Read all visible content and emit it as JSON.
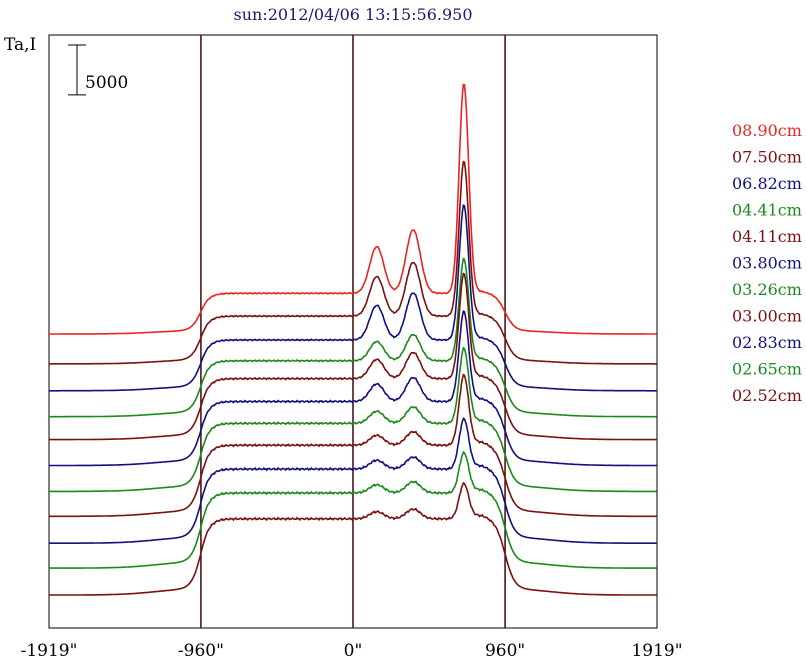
{
  "chart_data": {
    "type": "line",
    "title": "sun:2012/04/06 13:15:56.950",
    "ylabel": "Ta,I",
    "scale_bar_label": "5000",
    "scale_bar_value": 5000,
    "xlim": [
      -1919,
      1919
    ],
    "x_ticks": [
      {
        "value": -1919,
        "label": "-1919\""
      },
      {
        "value": -960,
        "label": "-960\""
      },
      {
        "value": 0,
        "label": "0\""
      },
      {
        "value": 960,
        "label": "960\""
      },
      {
        "value": 1919,
        "label": "1919\""
      }
    ],
    "vertical_lines_at": [
      -960,
      0,
      960
    ],
    "legend_position": "right",
    "series": [
      {
        "name": "08.90cm",
        "color": "#ee2222",
        "baseline": 28000,
        "ta": 4000,
        "peak": 21000,
        "peak2": 8500
      },
      {
        "name": "07.50cm",
        "color": "#7a1010",
        "baseline": 25000,
        "ta": 4700,
        "peak": 15500,
        "peak2": 7200
      },
      {
        "name": "06.82cm",
        "color": "#101080",
        "baseline": 22300,
        "ta": 5000,
        "peak": 13500,
        "peak2": 6300
      },
      {
        "name": "04.41cm",
        "color": "#1a8a1a",
        "baseline": 19700,
        "ta": 5500,
        "peak": 10200,
        "peak2": 3500
      },
      {
        "name": "04.11cm",
        "color": "#7a1010",
        "baseline": 17400,
        "ta": 6000,
        "peak": 10500,
        "peak2": 3500
      },
      {
        "name": "03.80cm",
        "color": "#101080",
        "baseline": 14800,
        "ta": 6300,
        "peak": 9000,
        "peak2": 3200
      },
      {
        "name": "03.26cm",
        "color": "#1a8a1a",
        "baseline": 12200,
        "ta": 6700,
        "peak": 7500,
        "peak2": 2200
      },
      {
        "name": "03.00cm",
        "color": "#7a1010",
        "baseline": 9700,
        "ta": 7000,
        "peak": 7000,
        "peak2": 1800
      },
      {
        "name": "02.83cm",
        "color": "#101080",
        "baseline": 7000,
        "ta": 7300,
        "peak": 5000,
        "peak2": 1600
      },
      {
        "name": "02.65cm",
        "color": "#1a8a1a",
        "baseline": 4500,
        "ta": 7400,
        "peak": 4000,
        "peak2": 1500
      },
      {
        "name": "02.52cm",
        "color": "#7a1010",
        "baseline": 1800,
        "ta": 7500,
        "peak": 3500,
        "peak2": 1300
      }
    ],
    "ylim": [
      0,
      58000
    ]
  }
}
